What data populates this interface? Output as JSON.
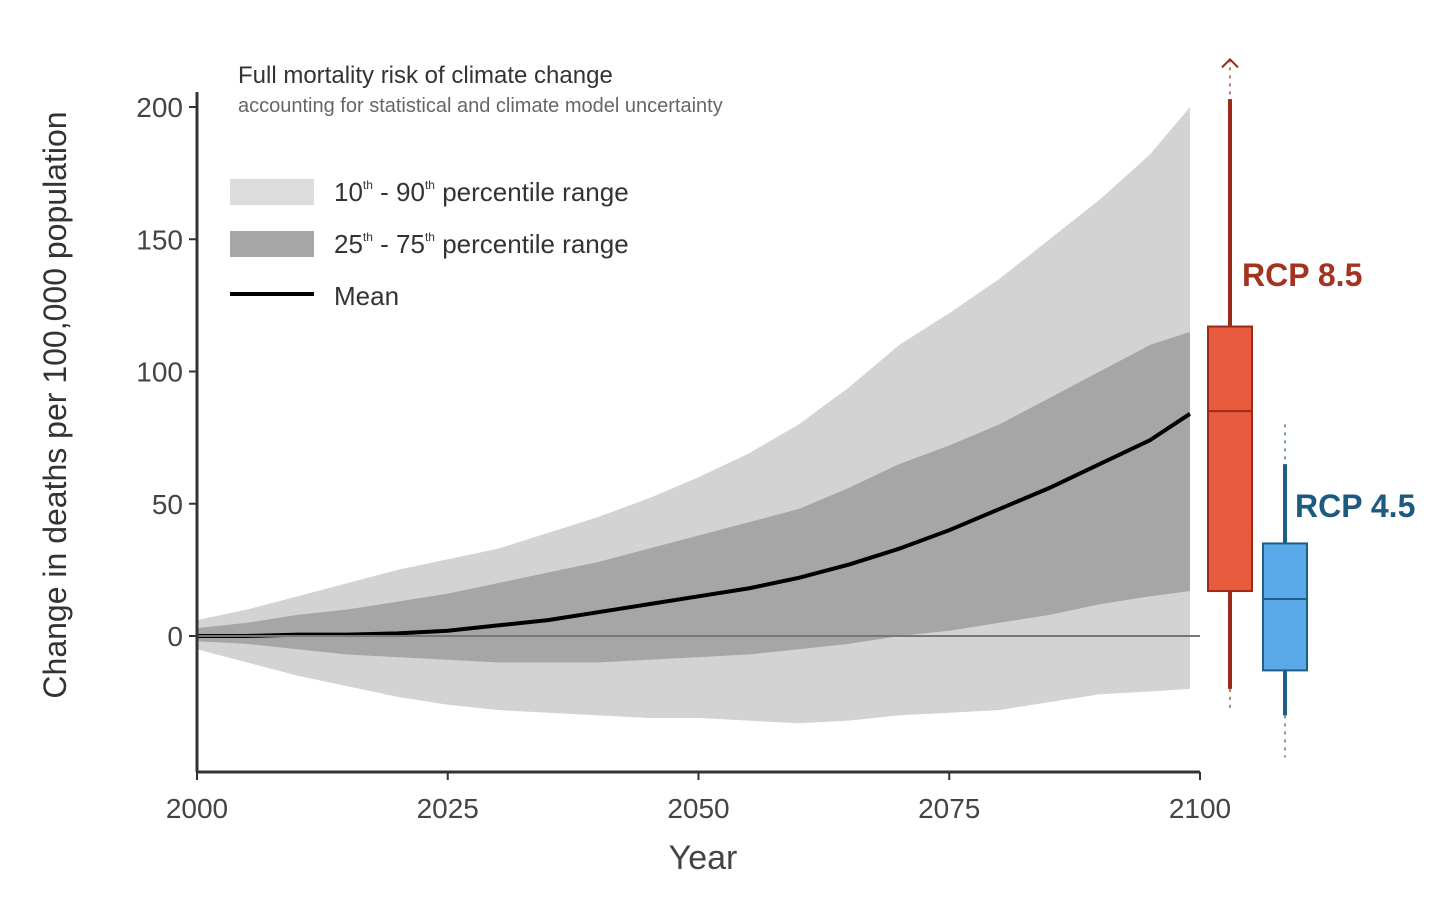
{
  "chart_data": {
    "type": "area",
    "title": "Full mortality risk of climate change",
    "subtitle": "accounting for statistical and climate model uncertainty",
    "xlabel": "Year",
    "ylabel": "Change in deaths per 100,000 population",
    "xlim": [
      2000,
      2100
    ],
    "ylim": [
      -52,
      205
    ],
    "x_ticks": [
      2000,
      2025,
      2050,
      2075,
      2100
    ],
    "y_ticks": [
      0,
      50,
      100,
      150,
      200
    ],
    "grid": false,
    "legend_position": "top-left",
    "legend": [
      {
        "label_main": "10",
        "sup1": "th",
        "mid": " - 90",
        "sup2": "th",
        "rest": " percentile range",
        "color": "#d3d3d3"
      },
      {
        "label_main": "25",
        "sup1": "th",
        "mid": " - 75",
        "sup2": "th",
        "rest": " percentile range",
        "color": "#a6a6a6"
      },
      {
        "label_main": "Mean",
        "sup1": "",
        "mid": "",
        "sup2": "",
        "rest": "",
        "color": "#000000"
      }
    ],
    "x": [
      2000,
      2005,
      2010,
      2015,
      2020,
      2025,
      2030,
      2035,
      2040,
      2045,
      2050,
      2055,
      2060,
      2065,
      2070,
      2075,
      2080,
      2085,
      2090,
      2095,
      2099
    ],
    "series": [
      {
        "name": "p90",
        "values": [
          6,
          10,
          15,
          20,
          25,
          29,
          33,
          39,
          45,
          52,
          60,
          69,
          80,
          94,
          110,
          122,
          135,
          150,
          165,
          182,
          200
        ]
      },
      {
        "name": "p75",
        "values": [
          3,
          5,
          8,
          10,
          13,
          16,
          20,
          24,
          28,
          33,
          38,
          43,
          48,
          56,
          65,
          72,
          80,
          90,
          100,
          110,
          115
        ]
      },
      {
        "name": "mean",
        "values": [
          0,
          0,
          0.5,
          0.5,
          1,
          2,
          4,
          6,
          9,
          12,
          15,
          18,
          22,
          27,
          33,
          40,
          48,
          56,
          65,
          74,
          84
        ]
      },
      {
        "name": "p25",
        "values": [
          -2,
          -3,
          -5,
          -7,
          -8,
          -9,
          -10,
          -10,
          -10,
          -9,
          -8,
          -7,
          -5,
          -3,
          0,
          2,
          5,
          8,
          12,
          15,
          17
        ]
      },
      {
        "name": "p10",
        "values": [
          -5,
          -10,
          -15,
          -19,
          -23,
          -26,
          -28,
          -29,
          -30,
          -31,
          -31,
          -32,
          -33,
          -32,
          -30,
          -29,
          -28,
          -25,
          -22,
          -21,
          -20
        ]
      }
    ],
    "boxplots": [
      {
        "name": "RCP 8.5",
        "color": "#e95b3f",
        "edge": "#9b2a1a",
        "label_color": "#a3321f",
        "whisker_low": -20,
        "q1": 17,
        "median": 85,
        "q3": 117,
        "whisker_high": 203,
        "dotted_low": -28,
        "dotted_high": 218,
        "arrow": true
      },
      {
        "name": "RCP 4.5",
        "color": "#5aaaea",
        "edge": "#205e86",
        "label_color": "#1d5a80",
        "whisker_low": -30,
        "q1": -13,
        "median": 14,
        "q3": 35,
        "whisker_high": 65,
        "dotted_low": -46,
        "dotted_high": 80,
        "arrow": false
      }
    ]
  }
}
